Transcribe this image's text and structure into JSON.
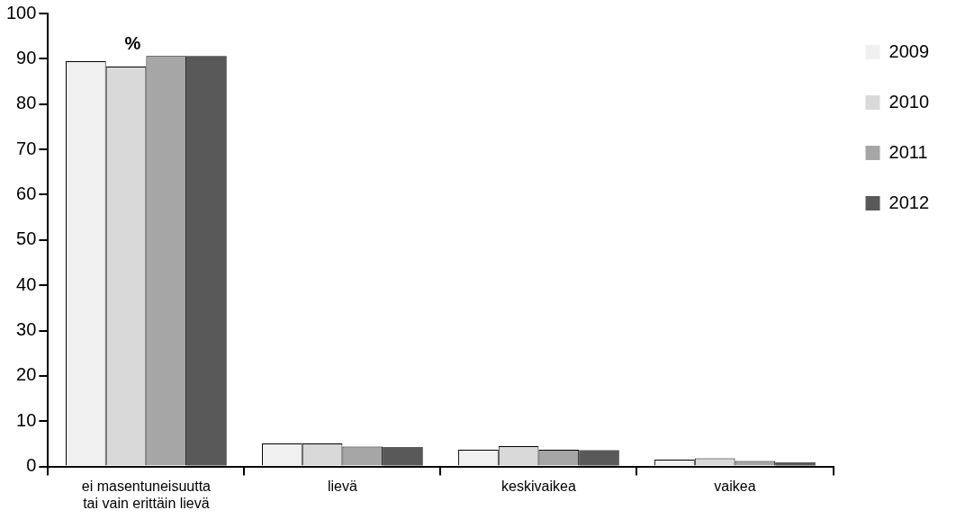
{
  "chart_data": {
    "type": "bar",
    "categories": [
      "ei masentuneisuutta\ntai vain erittäin lievä",
      "lievä",
      "keskivaikea",
      "vaikea"
    ],
    "series": [
      {
        "name": "2009",
        "color": "#f0f0f0",
        "values": [
          89.5,
          5.1,
          3.7,
          1.5
        ]
      },
      {
        "name": "2010",
        "color": "#d9d9d9",
        "values": [
          88.3,
          5.1,
          4.5,
          1.8
        ]
      },
      {
        "name": "2011",
        "color": "#a6a6a6",
        "values": [
          90.6,
          4.4,
          3.7,
          1.2
        ]
      },
      {
        "name": "2012",
        "color": "#595959",
        "values": [
          90.6,
          4.3,
          3.6,
          0.9
        ]
      }
    ],
    "ylim": [
      0,
      100
    ],
    "yticks": [
      0,
      10,
      20,
      30,
      40,
      50,
      60,
      70,
      80,
      90,
      100
    ],
    "grid": false,
    "legend": "right",
    "annotations": [
      "%"
    ]
  }
}
